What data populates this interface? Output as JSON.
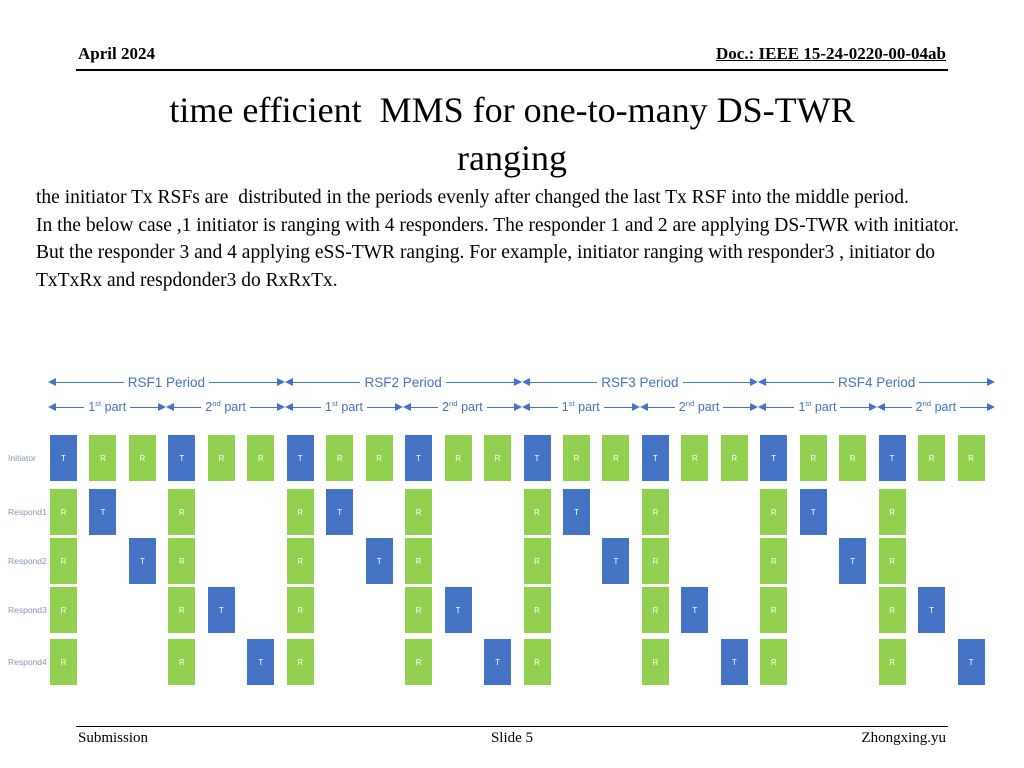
{
  "header": {
    "date": "April 2024",
    "doc": "Doc.: IEEE 15-24-0220-00-04ab"
  },
  "title": {
    "line1": "time efficient  MMS for one-to-many DS-TWR",
    "line2": "ranging"
  },
  "body": {
    "p1": "the initiator Tx RSFs are  distributed in the periods evenly after changed the last Tx RSF into the middle period.",
    "p2": "In the below case ,1 initiator is ranging with 4 responders. The responder 1 and 2 are applying DS-TWR with initiator.",
    "p3": "But the responder 3 and 4 applying eSS-TWR ranging. For example, initiator ranging with responder3 , initiator do TxTxRx and respdonder3 do RxRxTx."
  },
  "diagram": {
    "colors": {
      "accent": "#4472C4",
      "tx_block": "#4472C4",
      "rx_block": "#92D050",
      "row_label": "#8496B0"
    },
    "periods": [
      {
        "label": "RSF1 Period"
      },
      {
        "label": "RSF2 Period"
      },
      {
        "label": "RSF3 Period"
      },
      {
        "label": "RSF4 Period"
      }
    ],
    "parts": [
      {
        "num": "1",
        "ord": "st",
        "word": "part"
      },
      {
        "num": "2",
        "ord": "nd",
        "word": "part"
      },
      {
        "num": "1",
        "ord": "st",
        "word": "part"
      },
      {
        "num": "2",
        "ord": "nd",
        "word": "part"
      },
      {
        "num": "1",
        "ord": "st",
        "word": "part"
      },
      {
        "num": "2",
        "ord": "nd",
        "word": "part"
      },
      {
        "num": "1",
        "ord": "st",
        "word": "part"
      },
      {
        "num": "2",
        "ord": "nd",
        "word": "part"
      }
    ],
    "rows": [
      {
        "label": "Initiator",
        "blocks": [
          {
            "slot": 0,
            "type": "T"
          },
          {
            "slot": 1,
            "type": "R"
          },
          {
            "slot": 2,
            "type": "R"
          },
          {
            "slot": 3,
            "type": "T"
          },
          {
            "slot": 4,
            "type": "R"
          },
          {
            "slot": 5,
            "type": "R"
          },
          {
            "slot": 6,
            "type": "T"
          },
          {
            "slot": 7,
            "type": "R"
          },
          {
            "slot": 8,
            "type": "R"
          },
          {
            "slot": 9,
            "type": "T"
          },
          {
            "slot": 10,
            "type": "R"
          },
          {
            "slot": 11,
            "type": "R"
          },
          {
            "slot": 12,
            "type": "T"
          },
          {
            "slot": 13,
            "type": "R"
          },
          {
            "slot": 14,
            "type": "R"
          },
          {
            "slot": 15,
            "type": "T"
          },
          {
            "slot": 16,
            "type": "R"
          },
          {
            "slot": 17,
            "type": "R"
          },
          {
            "slot": 18,
            "type": "T"
          },
          {
            "slot": 19,
            "type": "R"
          },
          {
            "slot": 20,
            "type": "R"
          },
          {
            "slot": 21,
            "type": "T"
          },
          {
            "slot": 22,
            "type": "R"
          },
          {
            "slot": 23,
            "type": "R"
          }
        ]
      },
      {
        "label": "Respond1",
        "blocks": [
          {
            "slot": 0,
            "type": "R"
          },
          {
            "slot": 1,
            "type": "T"
          },
          {
            "slot": 3,
            "type": "R"
          },
          {
            "slot": 6,
            "type": "R"
          },
          {
            "slot": 7,
            "type": "T"
          },
          {
            "slot": 9,
            "type": "R"
          },
          {
            "slot": 12,
            "type": "R"
          },
          {
            "slot": 13,
            "type": "T"
          },
          {
            "slot": 15,
            "type": "R"
          },
          {
            "slot": 18,
            "type": "R"
          },
          {
            "slot": 19,
            "type": "T"
          },
          {
            "slot": 21,
            "type": "R"
          }
        ]
      },
      {
        "label": "Respond2",
        "blocks": [
          {
            "slot": 0,
            "type": "R"
          },
          {
            "slot": 2,
            "type": "T"
          },
          {
            "slot": 3,
            "type": "R"
          },
          {
            "slot": 6,
            "type": "R"
          },
          {
            "slot": 8,
            "type": "T"
          },
          {
            "slot": 9,
            "type": "R"
          },
          {
            "slot": 12,
            "type": "R"
          },
          {
            "slot": 14,
            "type": "T"
          },
          {
            "slot": 15,
            "type": "R"
          },
          {
            "slot": 18,
            "type": "R"
          },
          {
            "slot": 20,
            "type": "T"
          },
          {
            "slot": 21,
            "type": "R"
          }
        ]
      },
      {
        "label": "Respond3",
        "blocks": [
          {
            "slot": 0,
            "type": "R"
          },
          {
            "slot": 3,
            "type": "R"
          },
          {
            "slot": 4,
            "type": "T"
          },
          {
            "slot": 6,
            "type": "R"
          },
          {
            "slot": 9,
            "type": "R"
          },
          {
            "slot": 10,
            "type": "T"
          },
          {
            "slot": 12,
            "type": "R"
          },
          {
            "slot": 15,
            "type": "R"
          },
          {
            "slot": 16,
            "type": "T"
          },
          {
            "slot": 18,
            "type": "R"
          },
          {
            "slot": 21,
            "type": "R"
          },
          {
            "slot": 22,
            "type": "T"
          }
        ]
      },
      {
        "label": "Respond4",
        "blocks": [
          {
            "slot": 0,
            "type": "R"
          },
          {
            "slot": 3,
            "type": "R"
          },
          {
            "slot": 5,
            "type": "T"
          },
          {
            "slot": 6,
            "type": "R"
          },
          {
            "slot": 9,
            "type": "R"
          },
          {
            "slot": 11,
            "type": "T"
          },
          {
            "slot": 12,
            "type": "R"
          },
          {
            "slot": 15,
            "type": "R"
          },
          {
            "slot": 17,
            "type": "T"
          },
          {
            "slot": 18,
            "type": "R"
          },
          {
            "slot": 21,
            "type": "R"
          },
          {
            "slot": 23,
            "type": "T"
          }
        ]
      }
    ]
  },
  "footer": {
    "left": "Submission",
    "center": "Slide 5",
    "right": "Zhongxing.yu"
  }
}
